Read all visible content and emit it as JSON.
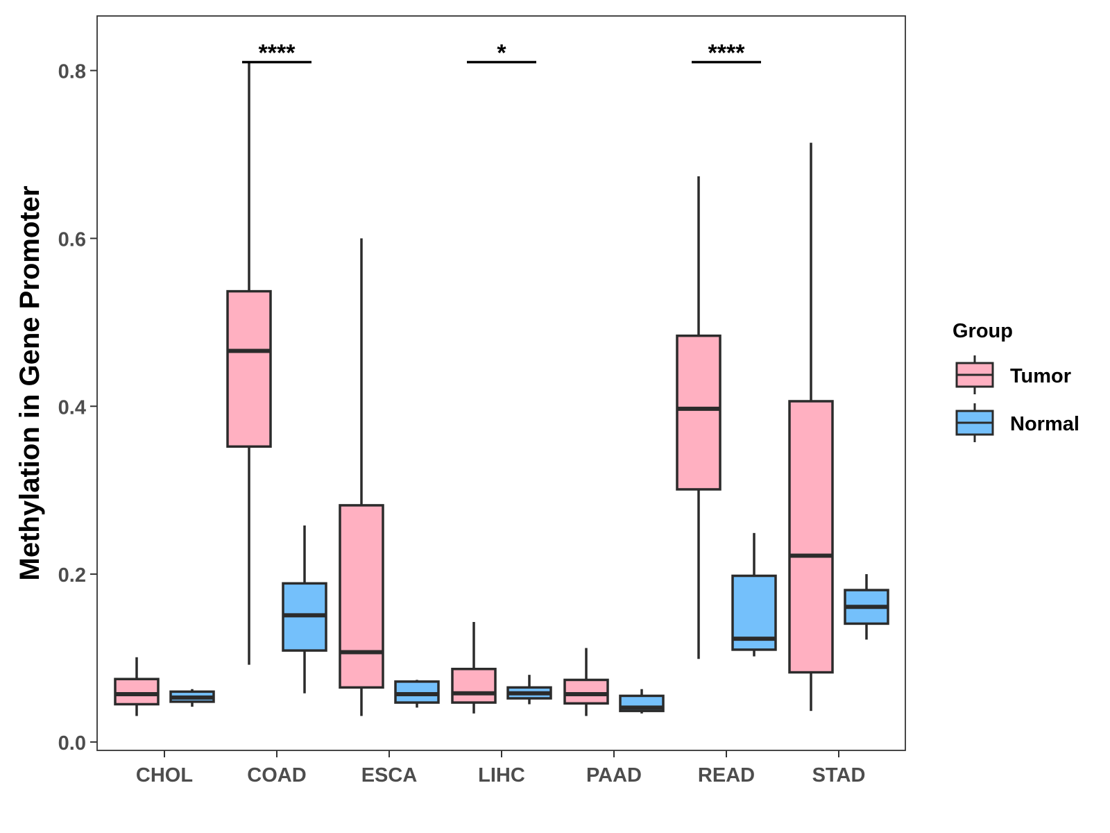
{
  "chart_data": {
    "type": "boxplot",
    "title": "",
    "xlabel": "",
    "ylabel": "Methylation in Gene Promoter",
    "ylim": [
      -0.01,
      0.865
    ],
    "yticks": [
      "0.0",
      "0.2",
      "0.4",
      "0.6",
      "0.8"
    ],
    "ytick_values": [
      0.0,
      0.2,
      0.4,
      0.6,
      0.8
    ],
    "categories": [
      "CHOL",
      "COAD",
      "ESCA",
      "LIHC",
      "PAAD",
      "READ",
      "STAD"
    ],
    "legend": {
      "title": "Group",
      "position": "right",
      "entries": [
        {
          "name": "Tumor",
          "color": "#FFB0C1"
        },
        {
          "name": "Normal",
          "color": "#74C0FB"
        }
      ]
    },
    "series": [
      {
        "name": "Tumor",
        "color": "#FFB0C1",
        "boxes": [
          {
            "category": "CHOL",
            "min": 0.031,
            "q1": 0.045,
            "median": 0.057,
            "q3": 0.075,
            "max": 0.101
          },
          {
            "category": "COAD",
            "min": 0.092,
            "q1": 0.352,
            "median": 0.466,
            "q3": 0.537,
            "max": 0.81
          },
          {
            "category": "ESCA",
            "min": 0.031,
            "q1": 0.065,
            "median": 0.107,
            "q3": 0.282,
            "max": 0.6
          },
          {
            "category": "LIHC",
            "min": 0.034,
            "q1": 0.047,
            "median": 0.058,
            "q3": 0.087,
            "max": 0.143
          },
          {
            "category": "PAAD",
            "min": 0.031,
            "q1": 0.046,
            "median": 0.057,
            "q3": 0.074,
            "max": 0.112
          },
          {
            "category": "READ",
            "min": 0.099,
            "q1": 0.301,
            "median": 0.397,
            "q3": 0.484,
            "max": 0.674
          },
          {
            "category": "STAD",
            "min": 0.037,
            "q1": 0.083,
            "median": 0.222,
            "q3": 0.406,
            "max": 0.714
          }
        ]
      },
      {
        "name": "Normal",
        "color": "#74C0FB",
        "boxes": [
          {
            "category": "CHOL",
            "min": 0.042,
            "q1": 0.048,
            "median": 0.053,
            "q3": 0.06,
            "max": 0.063
          },
          {
            "category": "COAD",
            "min": 0.058,
            "q1": 0.109,
            "median": 0.151,
            "q3": 0.189,
            "max": 0.258
          },
          {
            "category": "ESCA",
            "min": 0.041,
            "q1": 0.047,
            "median": 0.057,
            "q3": 0.072,
            "max": 0.074
          },
          {
            "category": "LIHC",
            "min": 0.045,
            "q1": 0.052,
            "median": 0.058,
            "q3": 0.065,
            "max": 0.08
          },
          {
            "category": "PAAD",
            "min": 0.034,
            "q1": 0.037,
            "median": 0.041,
            "q3": 0.055,
            "max": 0.063
          },
          {
            "category": "READ",
            "min": 0.102,
            "q1": 0.11,
            "median": 0.123,
            "q3": 0.198,
            "max": 0.249
          },
          {
            "category": "STAD",
            "min": 0.122,
            "q1": 0.141,
            "median": 0.161,
            "q3": 0.181,
            "max": 0.2
          }
        ]
      }
    ],
    "annotations": [
      {
        "category": "COAD",
        "label": "****",
        "y": 0.81
      },
      {
        "category": "LIHC",
        "label": "*",
        "y": 0.81
      },
      {
        "category": "READ",
        "label": "****",
        "y": 0.81
      }
    ]
  }
}
